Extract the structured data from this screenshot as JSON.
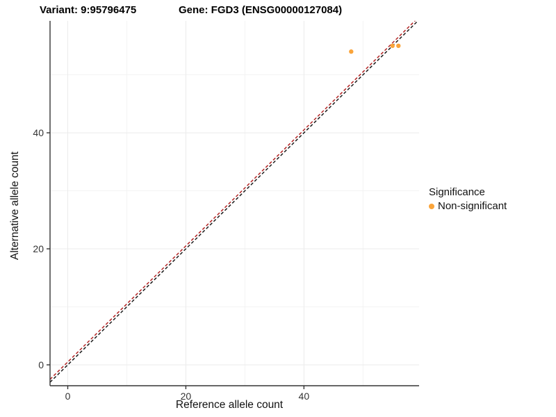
{
  "titles": {
    "variant": "Variant: 9:95796475",
    "gene": "Gene: FGD3 (ENSG00000127084)"
  },
  "axes": {
    "x_label": "Reference allele count",
    "y_label": "Alternative allele count"
  },
  "legend": {
    "title": "Significance",
    "items": [
      {
        "label": "Non-significant",
        "color": "#FAA43A"
      }
    ]
  },
  "colors": {
    "background": "#FFFFFF",
    "grid_major": "#EBEBEB",
    "grid_minor": "#F3F3F3",
    "axis_line": "#333333",
    "tick_label": "#333333",
    "identity_line": "#1A1A1A",
    "expected_line": "#B22222",
    "point": "#FAA43A"
  },
  "chart_data": {
    "type": "scatter",
    "title": "Variant: 9:95796475 | Gene: FGD3 (ENSG00000127084)",
    "xlabel": "Reference allele count",
    "ylabel": "Alternative allele count",
    "xlim": [
      -3,
      59.5
    ],
    "ylim": [
      -3.6,
      59.3
    ],
    "x_ticks": [
      0,
      20,
      40
    ],
    "y_ticks": [
      0,
      20,
      40
    ],
    "x_minor_ticks": [
      10,
      30,
      50
    ],
    "y_minor_ticks": [
      10,
      30,
      50
    ],
    "grid": "major and minor gridlines every 10 units, light gray",
    "legend_position": "right",
    "series": [
      {
        "name": "Non-significant",
        "color": "#FAA43A",
        "point_radius": 3.2,
        "points": [
          [
            48,
            54
          ],
          [
            55,
            55
          ],
          [
            56,
            55
          ]
        ]
      }
    ],
    "lines": [
      {
        "name": "identity",
        "slope": 1,
        "intercept": 0,
        "color": "#1A1A1A",
        "dash": "4.5 3",
        "width": 1.5
      },
      {
        "name": "expected",
        "slope": 1,
        "intercept": 0.5,
        "color": "#B22222",
        "dash": "4.5 3",
        "width": 1.5
      }
    ]
  }
}
